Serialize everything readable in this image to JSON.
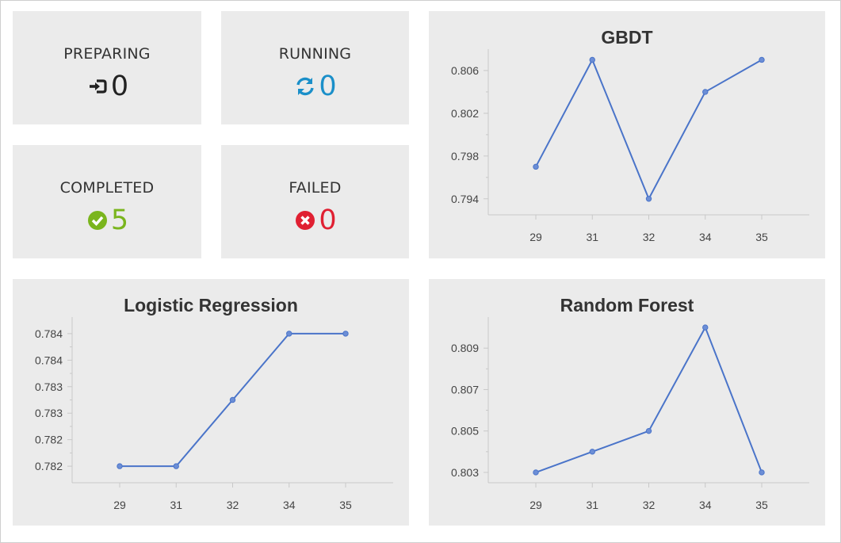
{
  "stats": [
    {
      "label": "PREPARING",
      "value": "0",
      "icon": "sign-in-icon",
      "color": "#222222"
    },
    {
      "label": "RUNNING",
      "value": "0",
      "icon": "refresh-icon",
      "color": "#1a8fc9"
    },
    {
      "label": "COMPLETED",
      "value": "5",
      "icon": "check-circle-icon",
      "color": "#7ab51d"
    },
    {
      "label": "FAILED",
      "value": "0",
      "icon": "times-circle-icon",
      "color": "#e02032"
    }
  ],
  "chart_data": [
    {
      "type": "line",
      "title": "GBDT",
      "categories": [
        "29",
        "31",
        "32",
        "34",
        "35"
      ],
      "values": [
        0.797,
        0.807,
        0.794,
        0.804,
        0.807
      ],
      "yticks": [
        "0.794",
        "0.798",
        "0.802",
        "0.806"
      ],
      "ylim": [
        0.7925,
        0.808
      ],
      "xlabel": "",
      "ylabel": "",
      "line_color": "#4a74c9"
    },
    {
      "type": "line",
      "title": "Logistic Regression",
      "categories": [
        "29",
        "31",
        "32",
        "34",
        "35"
      ],
      "values": [
        0.782,
        0.782,
        0.783,
        0.784,
        0.784
      ],
      "yticks": [
        "0.782",
        "0.782",
        "0.783",
        "0.783",
        "0.784",
        "0.784"
      ],
      "ylim": [
        0.78175,
        0.78425
      ],
      "xlabel": "",
      "ylabel": "",
      "line_color": "#4a74c9"
    },
    {
      "type": "line",
      "title": "Random Forest",
      "categories": [
        "29",
        "31",
        "32",
        "34",
        "35"
      ],
      "values": [
        0.803,
        0.804,
        0.805,
        0.81,
        0.803
      ],
      "yticks": [
        "0.803",
        "0.805",
        "0.807",
        "0.809"
      ],
      "ylim": [
        0.8025,
        0.8105
      ],
      "xlabel": "",
      "ylabel": "",
      "line_color": "#4a74c9"
    }
  ]
}
